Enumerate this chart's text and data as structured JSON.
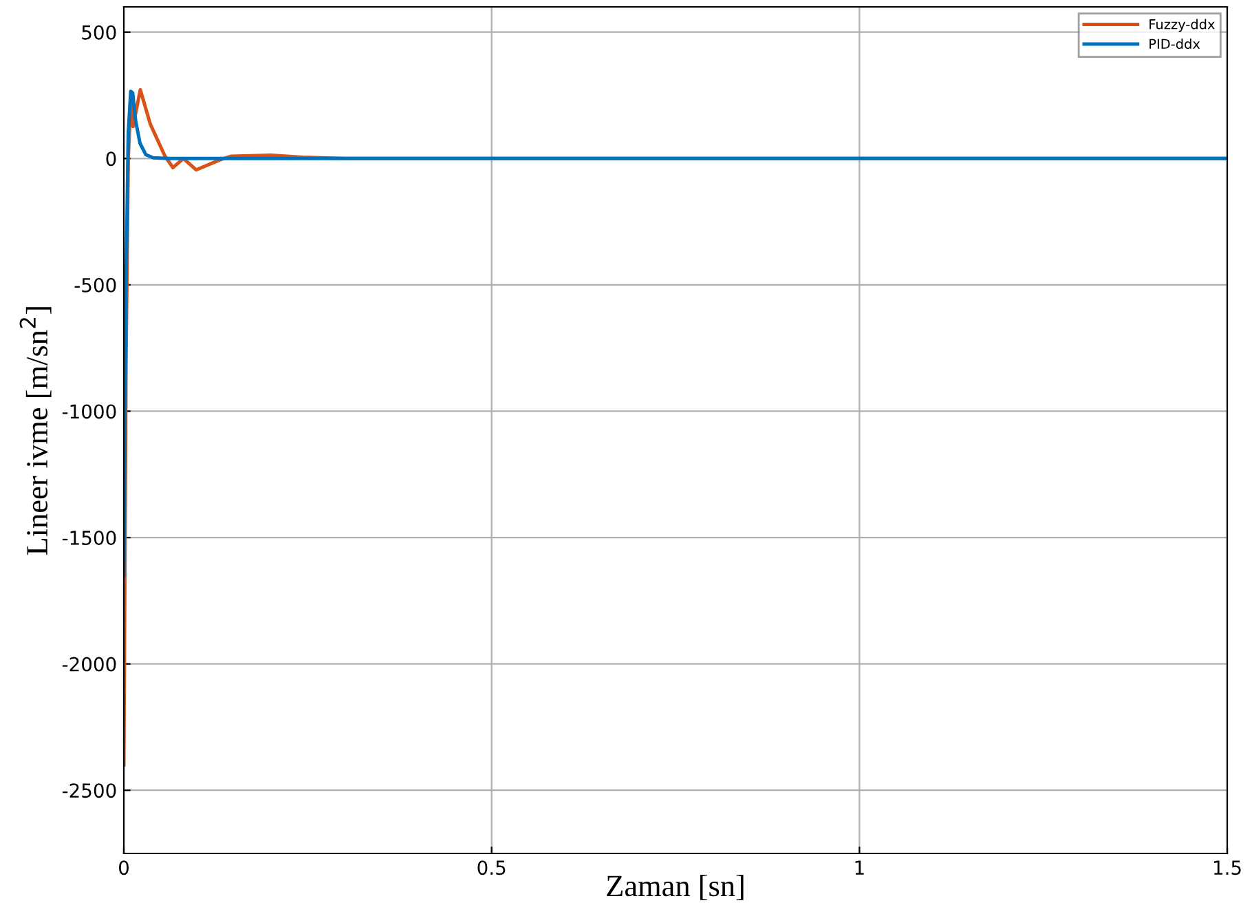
{
  "chart_data": {
    "type": "line",
    "xlabel": "Zaman [sn]",
    "ylabel": "Lineer ivme [m/sn$^{2}$]",
    "xlim": [
      0,
      1.5
    ],
    "xticks": [
      0,
      0.5,
      1,
      1.5
    ],
    "ylim": [
      -2750,
      600
    ],
    "yticks": [
      -2500,
      -2000,
      -1500,
      -1000,
      -500,
      0,
      500
    ],
    "grid": true,
    "legend": "top right",
    "series": [
      {
        "name": "Fuzzy-ddx",
        "color": "#d95319",
        "x": [
          0,
          0.003,
          0.006,
          0.0094,
          0.0125,
          0.0224,
          0.036,
          0.056,
          0.0667,
          0.081,
          0.0985,
          0.131,
          0.146,
          0.2,
          0.243,
          0.3,
          1.5
        ],
        "values": [
          -2400,
          -800,
          0,
          228,
          127,
          272,
          136,
          9,
          -36,
          0,
          -45,
          -5,
          9,
          13,
          5,
          0,
          0
        ]
      },
      {
        "name": "PID-ddx",
        "color": "#0072bd",
        "x": [
          0,
          0.003,
          0.006,
          0.0094,
          0.012,
          0.016,
          0.022,
          0.03,
          0.04,
          0.06,
          1.5
        ],
        "values": [
          -1650,
          -500,
          100,
          266,
          260,
          150,
          60,
          15,
          3,
          0,
          0
        ]
      }
    ]
  }
}
